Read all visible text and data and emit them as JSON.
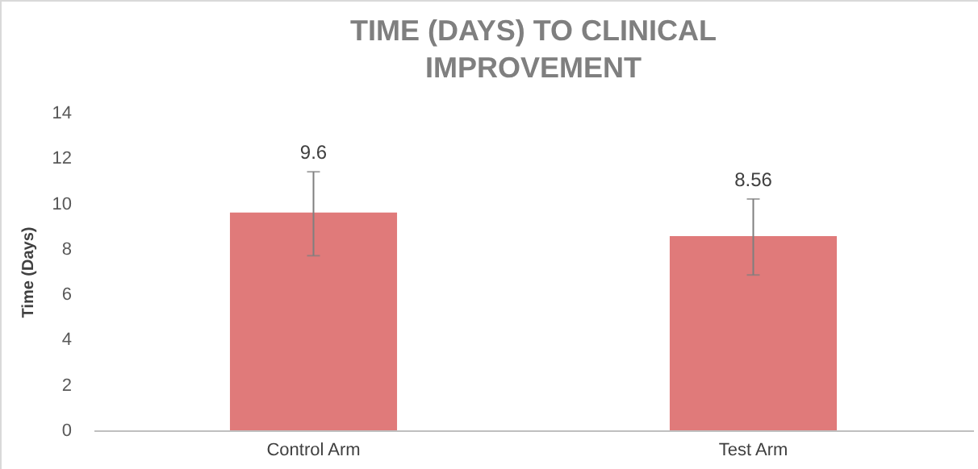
{
  "chart_data": {
    "type": "bar",
    "title": "TIME (DAYS) TO CLINICAL IMPROVEMENT",
    "ylabel": "Time (Days)",
    "categories": [
      "Control Arm",
      "Test Arm"
    ],
    "values": [
      9.6,
      8.56
    ],
    "color": "#e07a7a",
    "errors": [
      [
        7.7,
        11.4
      ],
      [
        6.85,
        10.2
      ]
    ],
    "data_labels": true,
    "ylim": [
      0,
      14
    ],
    "yticks": [
      0,
      2,
      4,
      6,
      8,
      10,
      12,
      14
    ],
    "grid": false
  }
}
